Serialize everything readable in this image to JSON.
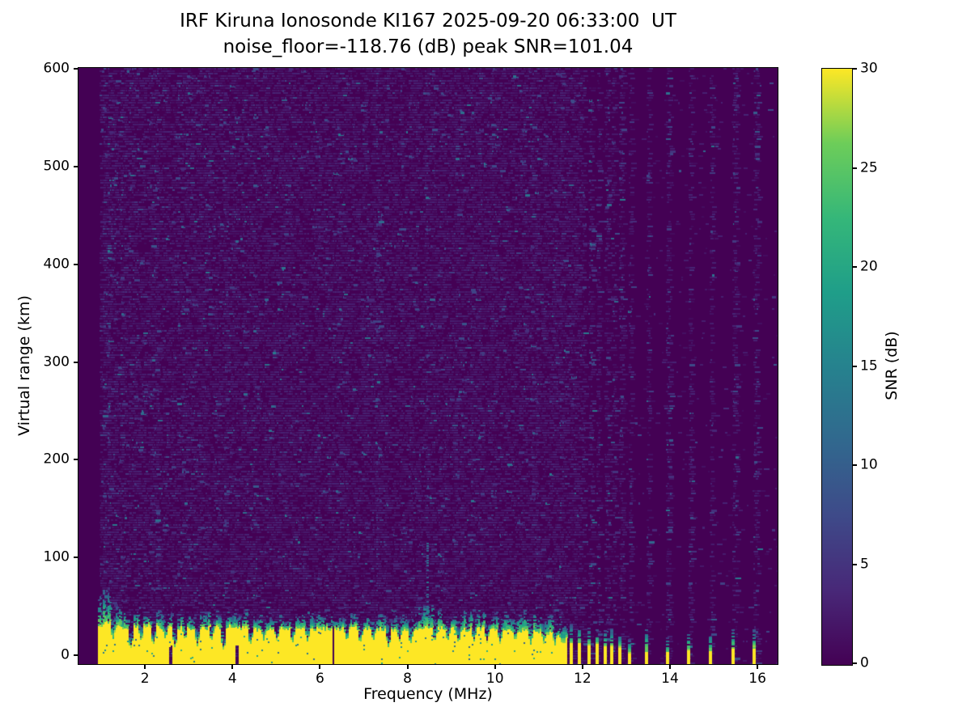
{
  "chart_data": {
    "type": "heatmap",
    "title": "IRF Kiruna Ionosonde KI167 2025-09-20 06:33:00  UT",
    "subtitle": "noise_floor=-118.76 (dB) peak SNR=101.04",
    "station": "KI167",
    "timestamp_ut": "2025-09-20 06:33:00",
    "noise_floor_db": -118.76,
    "peak_snr_db": 101.04,
    "xlabel": "Frequency (MHz)",
    "ylabel": "Virtual range (km)",
    "xlim": [
      0.48,
      16.46
    ],
    "ylim": [
      -9,
      601
    ],
    "xticks": [
      2,
      4,
      6,
      8,
      10,
      12,
      14,
      16
    ],
    "yticks": [
      0,
      100,
      200,
      300,
      400,
      500,
      600
    ],
    "grid": false,
    "colorbar": {
      "label": "SNR (dB)",
      "ticks": [
        0,
        5,
        10,
        15,
        20,
        25,
        30
      ],
      "vmin": 0,
      "vmax": 30,
      "colormap": "viridis"
    },
    "colors": {
      "background": "#ffffff",
      "frame": "#000000",
      "cmap_min": "#440154",
      "cmap_max": "#fde725",
      "viridis_stops": [
        "#440154",
        "#482878",
        "#3e4a89",
        "#31688e",
        "#26828e",
        "#1f9e89",
        "#35b779",
        "#6dcd59",
        "#fde725"
      ]
    },
    "content": {
      "seed": 167,
      "no_data_below_mhz": 0.94,
      "ground_echo_band": {
        "f_start": 0.94,
        "f_end": 11.62,
        "profile_freqs": [
          0.95,
          1.1,
          1.3,
          1.6,
          2.0,
          2.4,
          2.8,
          3.2,
          3.6,
          4.0,
          4.4,
          4.8,
          5.2,
          5.6,
          6.0,
          6.4,
          6.8,
          7.2,
          7.6,
          8.0,
          8.4,
          8.8,
          9.2,
          9.6,
          10.0,
          10.4,
          10.8,
          11.2,
          11.62
        ],
        "profile_top_km": [
          29,
          33,
          30,
          28,
          30,
          27,
          28,
          27,
          28,
          29,
          26,
          27,
          27,
          26,
          27,
          26,
          27,
          27,
          25,
          26,
          29,
          27,
          26,
          26,
          27,
          25,
          24,
          22,
          18
        ],
        "teal_profile_freqs": [
          0.95,
          1.05,
          1.3,
          1.8,
          2.5,
          3.5,
          5.0,
          6.5,
          8.0,
          8.45,
          9.0,
          10.0,
          10.7,
          11.3,
          11.62
        ],
        "teal_extra_km": [
          24,
          30,
          22,
          14,
          13,
          13,
          12,
          12,
          13,
          20,
          13,
          14,
          17,
          14,
          10
        ],
        "dips": [
          {
            "f": 1.25,
            "top_km": 15
          },
          {
            "f": 1.65,
            "top_km": 5
          },
          {
            "f": 1.9,
            "top_km": 13
          },
          {
            "f": 2.17,
            "top_km": 9
          },
          {
            "f": 2.45,
            "top_km": 15
          },
          {
            "f": 2.67,
            "top_km": 7
          },
          {
            "f": 2.9,
            "top_km": 14
          },
          {
            "f": 3.18,
            "top_km": 9
          },
          {
            "f": 3.5,
            "top_km": 13
          },
          {
            "f": 3.78,
            "top_km": 4
          },
          {
            "f": 4.39,
            "top_km": 9
          },
          {
            "f": 4.7,
            "top_km": 14
          },
          {
            "f": 5.0,
            "top_km": 13
          },
          {
            "f": 5.35,
            "top_km": 11
          },
          {
            "f": 5.7,
            "top_km": 13
          },
          {
            "f": 6.6,
            "top_km": 13
          },
          {
            "f": 6.9,
            "top_km": 11
          },
          {
            "f": 7.2,
            "top_km": 13
          },
          {
            "f": 7.55,
            "top_km": 7
          },
          {
            "f": 7.8,
            "top_km": 13
          },
          {
            "f": 8.05,
            "top_km": 10
          },
          {
            "f": 8.6,
            "top_km": 12
          },
          {
            "f": 8.9,
            "top_km": 13
          },
          {
            "f": 9.15,
            "top_km": 11
          },
          {
            "f": 9.5,
            "top_km": 13
          },
          {
            "f": 9.8,
            "top_km": 12
          },
          {
            "f": 10.1,
            "top_km": 11
          },
          {
            "f": 10.45,
            "top_km": 13
          },
          {
            "f": 10.8,
            "top_km": 10
          },
          {
            "f": 11.1,
            "top_km": 11
          },
          {
            "f": 11.35,
            "top_km": 9
          },
          {
            "f": 11.5,
            "top_km": 12
          }
        ],
        "cuts": [
          {
            "f": 6.28,
            "type": "full"
          },
          {
            "f": 4.09,
            "type": "half"
          },
          {
            "f": 2.57,
            "type": "half"
          }
        ]
      },
      "stripes": [
        {
          "f": 11.59,
          "yellow_top_km": 13,
          "teal_top_km": 30
        },
        {
          "f": 11.76,
          "yellow_top_km": 12,
          "teal_top_km": 32
        },
        {
          "f": 11.94,
          "yellow_top_km": 12,
          "teal_top_km": 30
        },
        {
          "f": 12.16,
          "yellow_top_km": 10,
          "teal_top_km": 28
        },
        {
          "f": 12.34,
          "yellow_top_km": 11,
          "teal_top_km": 26
        },
        {
          "f": 12.53,
          "yellow_top_km": 9,
          "teal_top_km": 25
        },
        {
          "f": 12.68,
          "yellow_top_km": 10,
          "teal_top_km": 27
        },
        {
          "f": 12.87,
          "yellow_top_km": 8,
          "teal_top_km": 22
        },
        {
          "f": 13.08,
          "yellow_top_km": 2,
          "teal_top_km": 16
        },
        {
          "f": 13.48,
          "yellow_top_km": 4,
          "teal_top_km": 28
        },
        {
          "f": 13.95,
          "yellow_top_km": 3,
          "teal_top_km": 18
        },
        {
          "f": 14.44,
          "yellow_top_km": 5,
          "teal_top_km": 26
        },
        {
          "f": 14.93,
          "yellow_top_km": 4,
          "teal_top_km": 22
        },
        {
          "f": 15.46,
          "yellow_top_km": 6,
          "teal_top_km": 28
        },
        {
          "f": 15.94,
          "yellow_top_km": 7,
          "teal_top_km": 26
        }
      ],
      "artifact_columns": [
        {
          "f": 7.3,
          "km_range": [
            -5,
            598
          ],
          "density": 0.22,
          "v_min": 3,
          "v_max": 7,
          "width": 2
        },
        {
          "f": 8.45,
          "km_range": [
            25,
            115
          ],
          "density": 0.8,
          "v_min": 8,
          "v_max": 14,
          "width": 3
        },
        {
          "f": 8.45,
          "km_range": [
            115,
            598
          ],
          "density": 0.15,
          "v_min": 3,
          "v_max": 6,
          "width": 2
        },
        {
          "f": 6.3,
          "km_range": [
            35,
            598
          ],
          "density": 0.1,
          "v_min": 3,
          "v_max": 6,
          "width": 2
        }
      ],
      "noise": {
        "low_band_max_mhz": 2.3,
        "faint_density": 0.45,
        "faint_density_right": 0.015,
        "density_low": 0.09,
        "density_midleft": 0.06,
        "density_mid": 0.045,
        "density_right": 0.002,
        "density_column": 0.08,
        "right_region_start_mhz": 12.05
      }
    }
  }
}
